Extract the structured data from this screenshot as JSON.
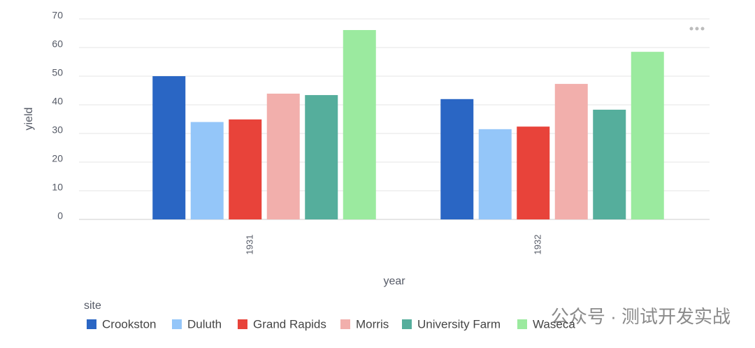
{
  "chart_data": {
    "type": "grouped_bar",
    "x_label": "year",
    "y_label": "yield",
    "legend_title": "site",
    "categories": [
      "1931",
      "1932"
    ],
    "series": [
      {
        "name": "Crookston",
        "color": "#2a66c4",
        "values": [
          50,
          42
        ]
      },
      {
        "name": "Duluth",
        "color": "#94c6f9",
        "values": [
          34,
          31.5
        ]
      },
      {
        "name": "Grand Rapids",
        "color": "#e8433a",
        "values": [
          34.9,
          32.4
        ]
      },
      {
        "name": "Morris",
        "color": "#f2afac",
        "values": [
          43.9,
          47.3
        ]
      },
      {
        "name": "University Farm",
        "color": "#55ae9c",
        "values": [
          43.4,
          38.3
        ]
      },
      {
        "name": "Waseca",
        "color": "#9bea9f",
        "values": [
          66.1,
          58.5
        ]
      }
    ],
    "ylim": [
      0,
      70
    ],
    "yticks": [
      0,
      10,
      20,
      30,
      40,
      50,
      60,
      70
    ],
    "grid": true,
    "legend": "bottom-left"
  },
  "watermark": "公众号 · 测试开发实战"
}
